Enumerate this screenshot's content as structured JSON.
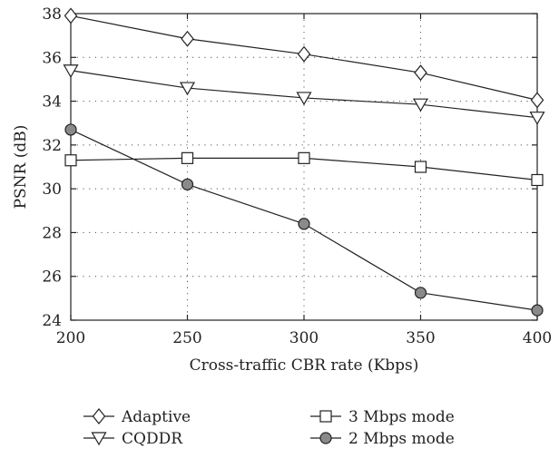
{
  "chart_data": {
    "type": "line",
    "xlabel": "Cross-traffic CBR rate (Kbps)",
    "ylabel": "PSNR (dB)",
    "x": [
      200,
      250,
      300,
      350,
      400
    ],
    "xlim": [
      200,
      400
    ],
    "ylim": [
      24,
      38
    ],
    "xticks": [
      200,
      250,
      300,
      350,
      400
    ],
    "yticks": [
      24,
      26,
      28,
      30,
      32,
      34,
      36,
      38
    ],
    "grid": true,
    "legend_position": "bottom",
    "series": [
      {
        "name": "Adaptive",
        "marker": "diamond",
        "values": [
          37.9,
          36.85,
          36.15,
          35.3,
          34.05
        ]
      },
      {
        "name": "CQDDR",
        "marker": "triangle-down",
        "values": [
          35.4,
          34.6,
          34.15,
          33.85,
          33.25
        ]
      },
      {
        "name": "3 Mbps mode",
        "marker": "square",
        "values": [
          31.3,
          31.4,
          31.4,
          31.0,
          30.4
        ]
      },
      {
        "name": "2 Mbps mode",
        "marker": "circle-filled",
        "values": [
          32.7,
          30.2,
          28.4,
          25.25,
          24.45
        ]
      }
    ]
  }
}
